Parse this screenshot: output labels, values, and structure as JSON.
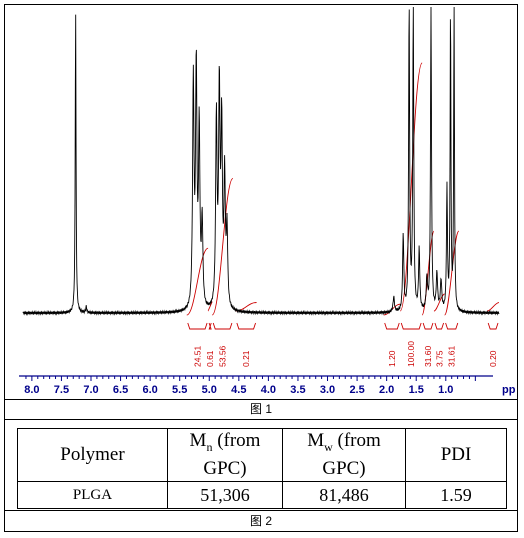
{
  "chart_data": {
    "type": "line",
    "title": "",
    "xlabel": "pp",
    "ylabel": "",
    "xlim": [
      8.15,
      0.1
    ],
    "x_ticks": [
      "8.0",
      "7.5",
      "7.0",
      "6.5",
      "6.0",
      "5.5",
      "5.0",
      "4.5",
      "4.0",
      "3.5",
      "3.0",
      "2.5",
      "2.0",
      "1.5",
      "1.0"
    ],
    "line_color": "#000000",
    "integral_color": "#cc0000",
    "axis_color": "#00008b",
    "peaks": [
      {
        "ppm": 7.26,
        "height": 1.0,
        "width": 0.008
      },
      {
        "ppm": 7.08,
        "height": 0.02,
        "width": 0.01
      },
      {
        "ppm": 5.27,
        "height": 0.74,
        "width": 0.014
      },
      {
        "ppm": 5.22,
        "height": 0.78,
        "width": 0.014
      },
      {
        "ppm": 5.17,
        "height": 0.58,
        "width": 0.014
      },
      {
        "ppm": 5.12,
        "height": 0.28,
        "width": 0.014
      },
      {
        "ppm": 4.88,
        "height": 0.62,
        "width": 0.014
      },
      {
        "ppm": 4.83,
        "height": 0.7,
        "width": 0.014
      },
      {
        "ppm": 4.79,
        "height": 0.58,
        "width": 0.014
      },
      {
        "ppm": 4.74,
        "height": 0.42,
        "width": 0.014
      },
      {
        "ppm": 4.7,
        "height": 0.25,
        "width": 0.014
      },
      {
        "ppm": 1.88,
        "height": 0.05,
        "width": 0.014
      },
      {
        "ppm": 1.72,
        "height": 0.25,
        "width": 0.012
      },
      {
        "ppm": 1.62,
        "height": 1.0,
        "width": 0.01
      },
      {
        "ppm": 1.55,
        "height": 1.0,
        "width": 0.01
      },
      {
        "ppm": 1.45,
        "height": 0.2,
        "width": 0.012
      },
      {
        "ppm": 1.32,
        "height": 0.1,
        "width": 0.014
      },
      {
        "ppm": 1.25,
        "height": 1.0,
        "width": 0.01
      },
      {
        "ppm": 1.15,
        "height": 0.12,
        "width": 0.014
      },
      {
        "ppm": 1.08,
        "height": 0.1,
        "width": 0.014
      },
      {
        "ppm": 0.98,
        "height": 0.4,
        "width": 0.01
      },
      {
        "ppm": 0.92,
        "height": 1.0,
        "width": 0.008
      },
      {
        "ppm": 0.86,
        "height": 1.0,
        "width": 0.008
      }
    ],
    "integrals": [
      {
        "from": 5.38,
        "to": 5.02,
        "value": "24.51"
      },
      {
        "from": 5.02,
        "to": 4.95,
        "value": "0.61"
      },
      {
        "from": 4.95,
        "to": 4.6,
        "value": "53.56"
      },
      {
        "from": 4.55,
        "to": 4.2,
        "value": "0.21"
      },
      {
        "from": 2.05,
        "to": 1.77,
        "value": "1.20"
      },
      {
        "from": 1.77,
        "to": 1.4,
        "value": "100.00"
      },
      {
        "from": 1.4,
        "to": 1.2,
        "value": "31.60"
      },
      {
        "from": 1.2,
        "to": 1.02,
        "value": "3.75"
      },
      {
        "from": 1.02,
        "to": 0.78,
        "value": "31.61"
      },
      {
        "from": 0.3,
        "to": 0.1,
        "value": "0.20"
      }
    ]
  },
  "figure1_caption": "图 1",
  "figure2_caption": "图 2",
  "table": {
    "headers": {
      "polymer": "Polymer",
      "mn_main": "M",
      "mn_sub": "n",
      "mn_rest": " (from GPC)",
      "mw_main": "M",
      "mw_sub": "w",
      "mw_rest": " (from GPC)",
      "pdi": "PDI"
    },
    "row": {
      "polymer": "PLGA",
      "mn": "51,306",
      "mw": "81,486",
      "pdi": "1.59"
    }
  }
}
